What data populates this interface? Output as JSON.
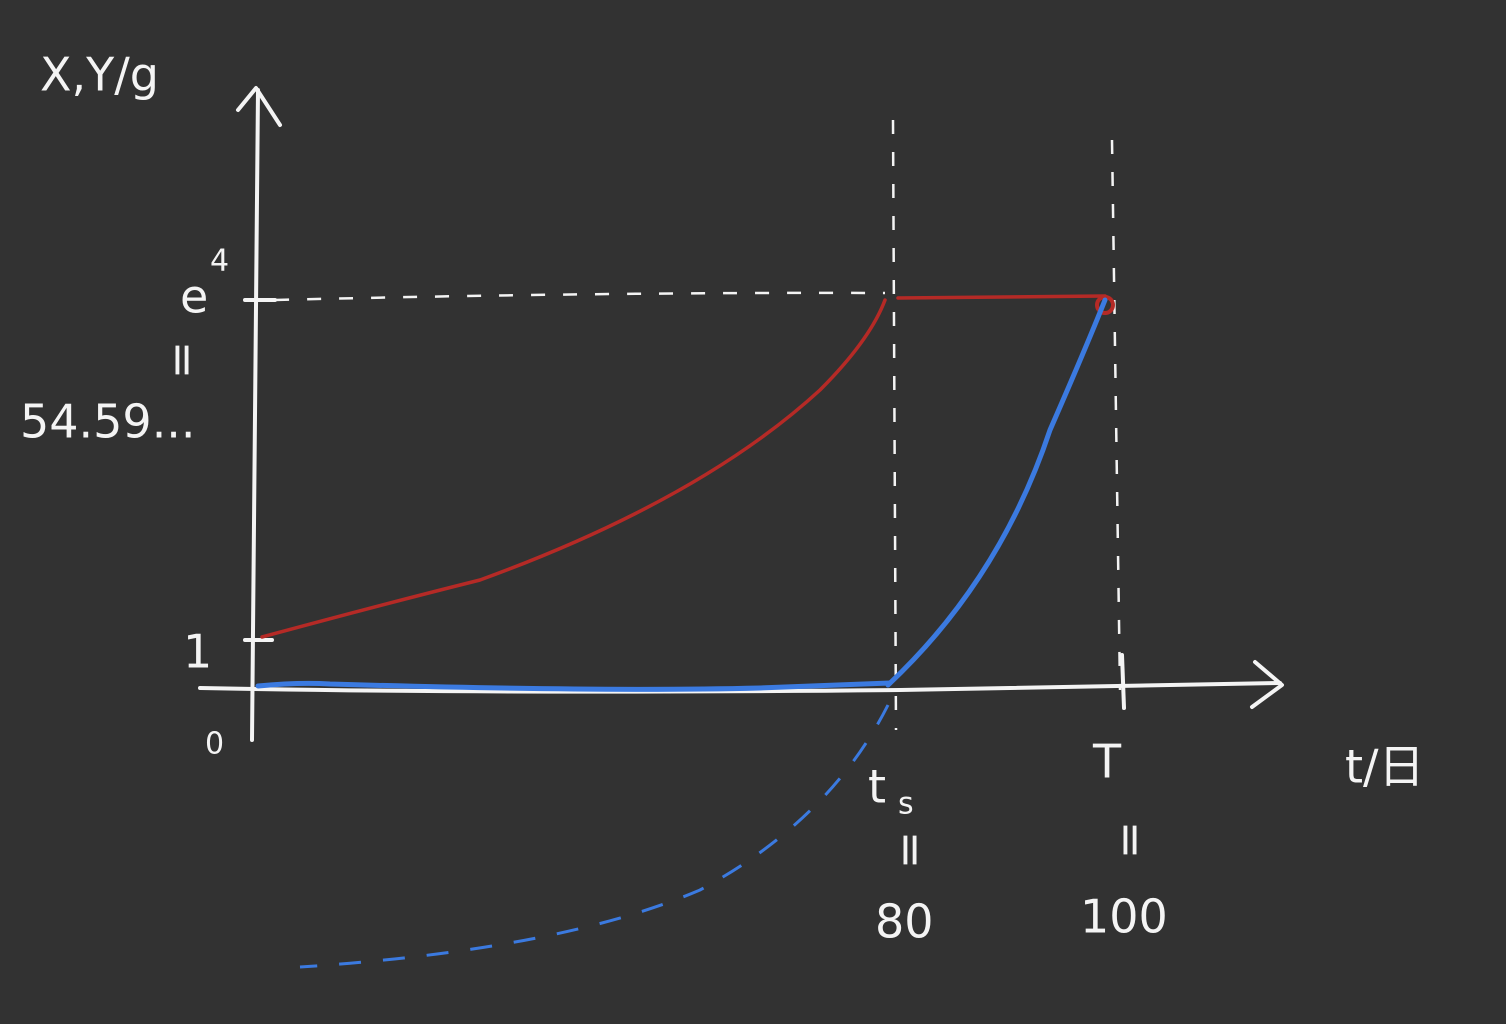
{
  "axes": {
    "y_label": "X,Y/g",
    "x_label": "t/日",
    "origin": "0"
  },
  "y_marks": [
    {
      "label": "1"
    },
    {
      "label": "e",
      "superscript": "4",
      "equals": "=",
      "value": "54.59..."
    }
  ],
  "x_marks": [
    {
      "label": "t",
      "subscript": "s",
      "equals": "=",
      "value": "80"
    },
    {
      "label": "T",
      "equals": "=",
      "value": "100"
    }
  ]
}
